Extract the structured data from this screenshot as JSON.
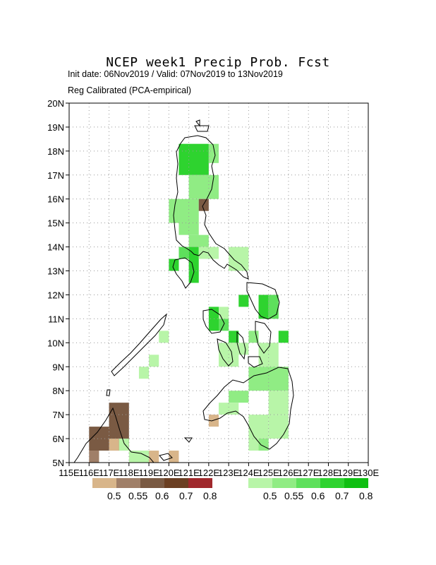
{
  "title": "NCEP week1 Precip Prob. Fcst",
  "subtitle_dates": "Init date: 06Nov2019 / Valid: 07Nov2019 to 13Nov2019",
  "subtitle_method": "Reg Calibrated (PCA-empirical)",
  "map": {
    "lon_range": [
      115,
      130
    ],
    "lat_range": [
      5,
      20
    ],
    "lon_labels": [
      "115E",
      "116E",
      "117E",
      "118E",
      "119E",
      "120E",
      "121E",
      "122E",
      "123E",
      "124E",
      "125E",
      "126E",
      "127E",
      "128E",
      "129E",
      "130E"
    ],
    "lat_labels": [
      "5N",
      "6N",
      "7N",
      "8N",
      "9N",
      "10N",
      "11N",
      "12N",
      "13N",
      "14N",
      "15N",
      "16N",
      "17N",
      "18N",
      "19N",
      "20N"
    ],
    "grid": "dotted"
  },
  "dry_legend": {
    "colors": [
      "#d8b58a",
      "#a07f68",
      "#7a5a43",
      "#6b3f22",
      "#a0282c"
    ],
    "labels": [
      "0.5",
      "0.55",
      "0.6",
      "0.7",
      "0.8"
    ]
  },
  "wet_legend": {
    "colors": [
      "#b8f5a8",
      "#90ec84",
      "#5ee05c",
      "#2ed32f",
      "#0fbf12"
    ],
    "labels": [
      "0.5",
      "0.55",
      "0.6",
      "0.7",
      "0.8"
    ]
  }
}
